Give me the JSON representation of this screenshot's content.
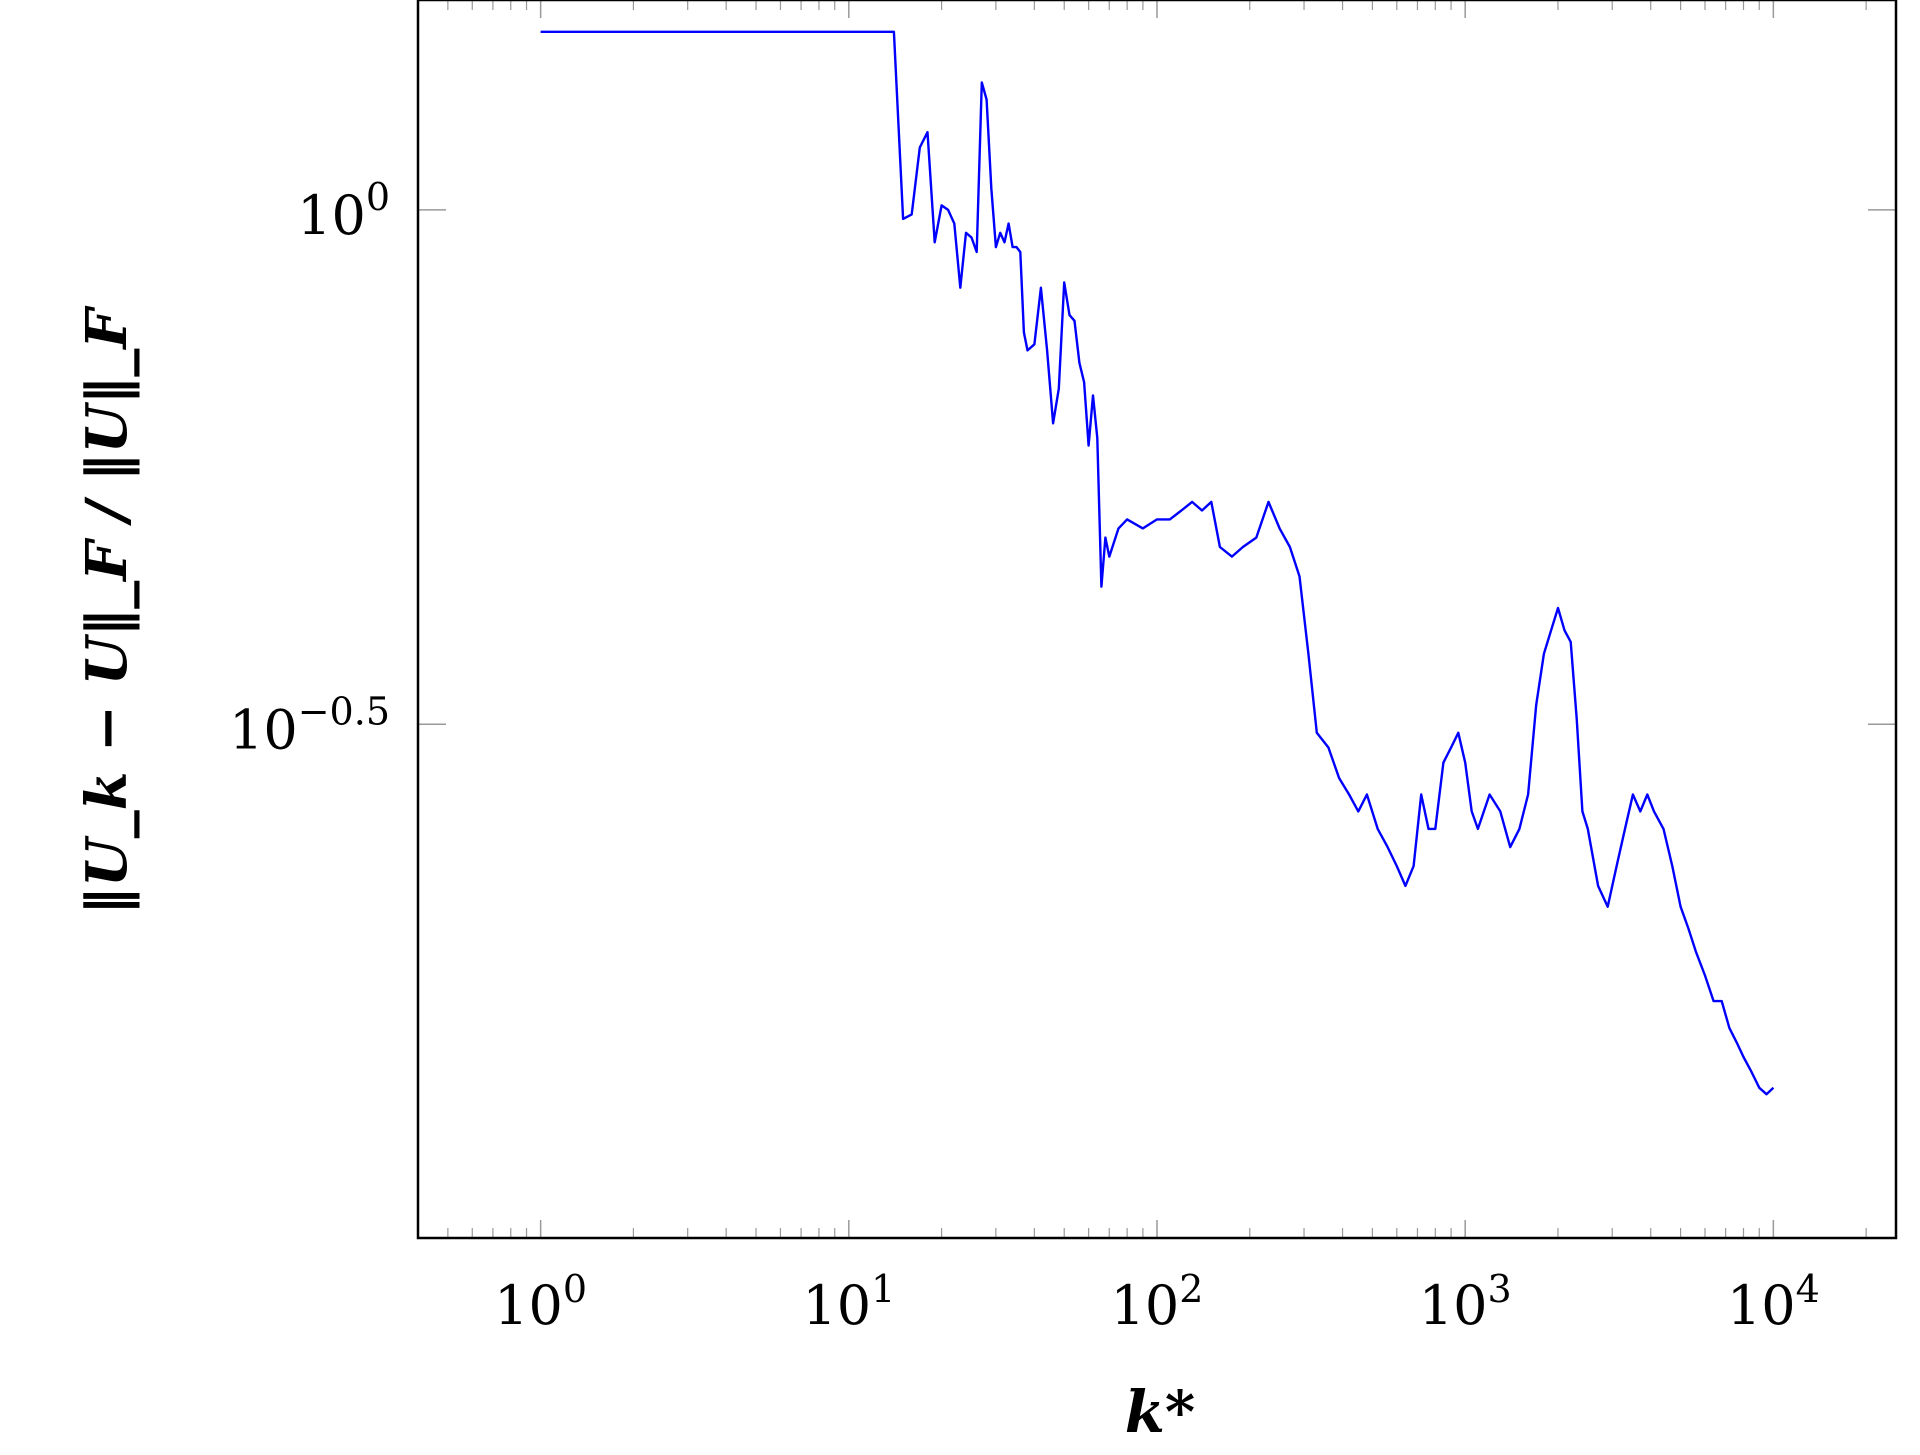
{
  "chart_data": {
    "type": "line",
    "title": "",
    "xlabel": "k*",
    "ylabel": "‖U_k − U‖_F / ‖U‖_F",
    "xscale": "log",
    "yscale": "log",
    "xlim": [
      0.4,
      25000
    ],
    "ylim": [
      0.1,
      1.6
    ],
    "grid": false,
    "legend": "none",
    "xticks": [
      {
        "value": 1,
        "base": "10",
        "exp": "0"
      },
      {
        "value": 10,
        "base": "10",
        "exp": "1"
      },
      {
        "value": 100,
        "base": "10",
        "exp": "2"
      },
      {
        "value": 1000,
        "base": "10",
        "exp": "3"
      },
      {
        "value": 10000,
        "base": "10",
        "exp": "4"
      }
    ],
    "yticks": [
      {
        "value": 1.0,
        "base": "10",
        "exp": "0"
      },
      {
        "value": 0.316,
        "base": "10",
        "exp": "−0.5"
      }
    ],
    "series": [
      {
        "color": "#0000ff",
        "x": [
          1,
          14,
          15,
          16,
          17,
          18,
          19,
          20,
          21,
          22,
          23,
          24,
          25,
          26,
          27,
          28,
          29,
          30,
          31,
          32,
          33,
          34,
          35,
          36,
          37,
          38,
          40,
          42,
          44,
          46,
          48,
          50,
          52,
          54,
          56,
          58,
          60,
          62,
          64,
          66,
          68,
          70,
          75,
          80,
          90,
          100,
          110,
          120,
          130,
          140,
          150,
          160,
          175,
          190,
          210,
          230,
          250,
          270,
          290,
          310,
          330,
          360,
          390,
          420,
          450,
          480,
          520,
          560,
          600,
          640,
          680,
          720,
          760,
          800,
          850,
          900,
          950,
          1000,
          1050,
          1100,
          1200,
          1300,
          1400,
          1500,
          1600,
          1700,
          1800,
          1900,
          2000,
          2100,
          2200,
          2300,
          2400,
          2500,
          2700,
          2900,
          3100,
          3300,
          3500,
          3700,
          3900,
          4100,
          4400,
          4700,
          5000,
          5300,
          5600,
          6000,
          6400,
          6800,
          7200,
          7600,
          8000,
          8500,
          9000,
          9500,
          10000
        ],
        "y": [
          1.49,
          1.49,
          0.98,
          0.99,
          1.15,
          1.19,
          0.93,
          1.01,
          1.0,
          0.97,
          0.84,
          0.95,
          0.94,
          0.91,
          1.33,
          1.28,
          1.05,
          0.92,
          0.95,
          0.93,
          0.97,
          0.92,
          0.92,
          0.91,
          0.76,
          0.73,
          0.74,
          0.84,
          0.73,
          0.62,
          0.67,
          0.85,
          0.79,
          0.78,
          0.71,
          0.68,
          0.59,
          0.66,
          0.6,
          0.43,
          0.48,
          0.46,
          0.49,
          0.5,
          0.49,
          0.5,
          0.5,
          0.51,
          0.52,
          0.51,
          0.52,
          0.47,
          0.46,
          0.47,
          0.48,
          0.52,
          0.49,
          0.47,
          0.44,
          0.37,
          0.31,
          0.3,
          0.28,
          0.27,
          0.26,
          0.27,
          0.25,
          0.24,
          0.23,
          0.22,
          0.23,
          0.27,
          0.25,
          0.25,
          0.29,
          0.3,
          0.31,
          0.29,
          0.26,
          0.25,
          0.27,
          0.26,
          0.24,
          0.25,
          0.27,
          0.33,
          0.37,
          0.39,
          0.41,
          0.39,
          0.38,
          0.32,
          0.26,
          0.25,
          0.22,
          0.21,
          0.23,
          0.25,
          0.27,
          0.26,
          0.27,
          0.26,
          0.25,
          0.23,
          0.21,
          0.2,
          0.19,
          0.18,
          0.17,
          0.17,
          0.16,
          0.155,
          0.15,
          0.145,
          0.14,
          0.138,
          0.14
        ]
      }
    ]
  }
}
